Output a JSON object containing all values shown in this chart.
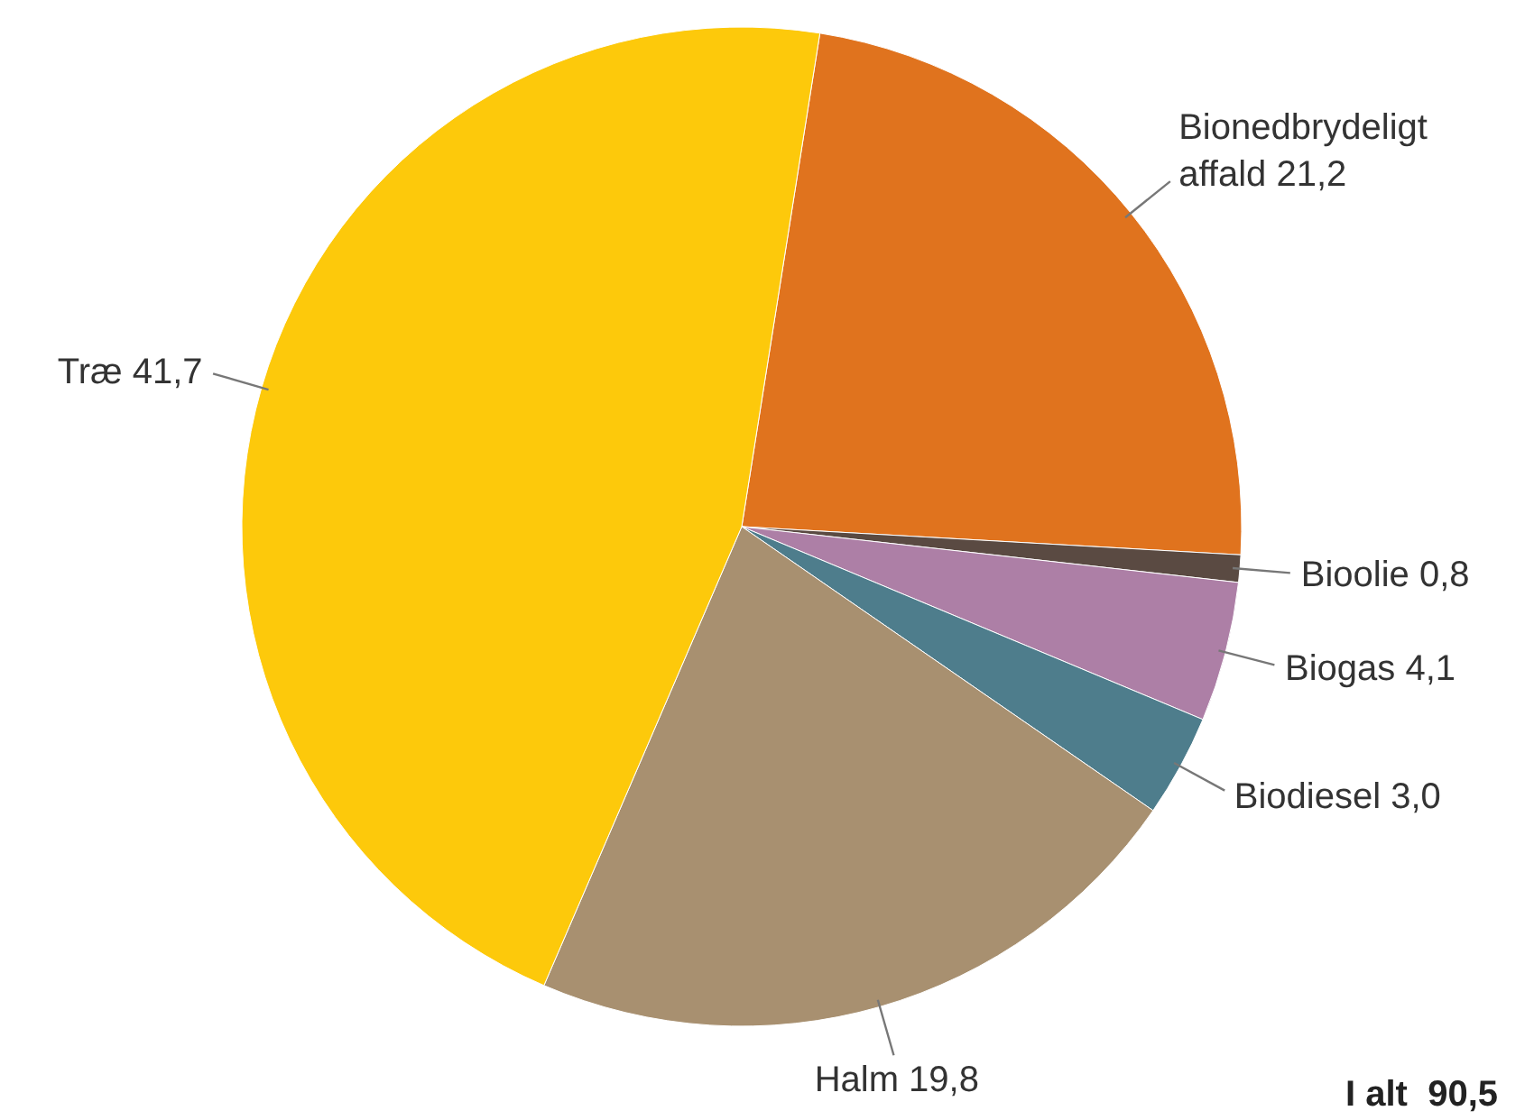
{
  "chart_data": {
    "type": "pie",
    "categories": [
      "Bionedbrydeligt affald",
      "Bioolie",
      "Biogas",
      "Biodiesel",
      "Halm",
      "Træ"
    ],
    "values": [
      21.2,
      0.8,
      4.1,
      3.0,
      19.8,
      41.7
    ],
    "value_labels": [
      "21,2",
      "0,8",
      "4,1",
      "3,0",
      "19,8",
      "41,7"
    ],
    "colors": [
      "#e0731e",
      "#5a4a42",
      "#ad7fa6",
      "#4e7d8c",
      "#a89070",
      "#fdc90b"
    ],
    "annotations": [
      "I alt  90,5"
    ]
  }
}
